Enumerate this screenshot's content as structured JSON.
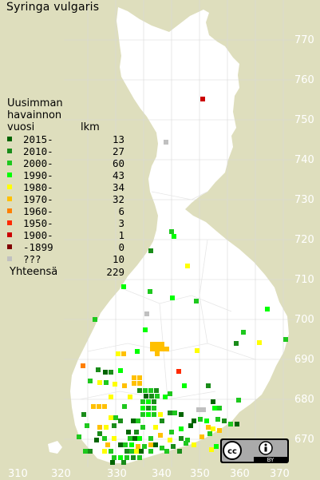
{
  "species": "Syringa vulgaris",
  "legend": {
    "title_lines": [
      "Uusimman",
      "havainnon"
    ],
    "col_year": "vuosi",
    "col_count": "lkm",
    "rows": [
      {
        "label": "2015-",
        "count": "13",
        "color": "#006400"
      },
      {
        "label": "2010-",
        "count": "27",
        "color": "#1a8c1a"
      },
      {
        "label": "2000-",
        "count": "60",
        "color": "#1ec81e"
      },
      {
        "label": "1990-",
        "count": "43",
        "color": "#00ff00"
      },
      {
        "label": "1980-",
        "count": "34",
        "color": "#ffff00"
      },
      {
        "label": "1970-",
        "count": "32",
        "color": "#ffc000"
      },
      {
        "label": "1960-",
        "count": "6",
        "color": "#ff7f00"
      },
      {
        "label": "1950-",
        "count": "3",
        "color": "#ff2a00"
      },
      {
        "label": "1900-",
        "count": "1",
        "color": "#cc0000"
      },
      {
        "label": "-1899",
        "count": "0",
        "color": "#800000"
      },
      {
        "label": "???",
        "count": "10",
        "color": "#c0c0c0"
      }
    ],
    "total_label": "Yhteensä",
    "total_count": "229"
  },
  "axes": {
    "x_ticks": [
      "310",
      "320",
      "330",
      "340",
      "350",
      "360",
      "370"
    ],
    "y_ticks": [
      "770",
      "760",
      "750",
      "740",
      "730",
      "720",
      "710",
      "700",
      "690",
      "680",
      "670"
    ]
  },
  "colors": {
    "background": "#dedebd",
    "land": "#ffffff",
    "tick_text": "#ffffff"
  },
  "license": {
    "icon": "cc-by-icon",
    "by_label": "BY"
  }
}
